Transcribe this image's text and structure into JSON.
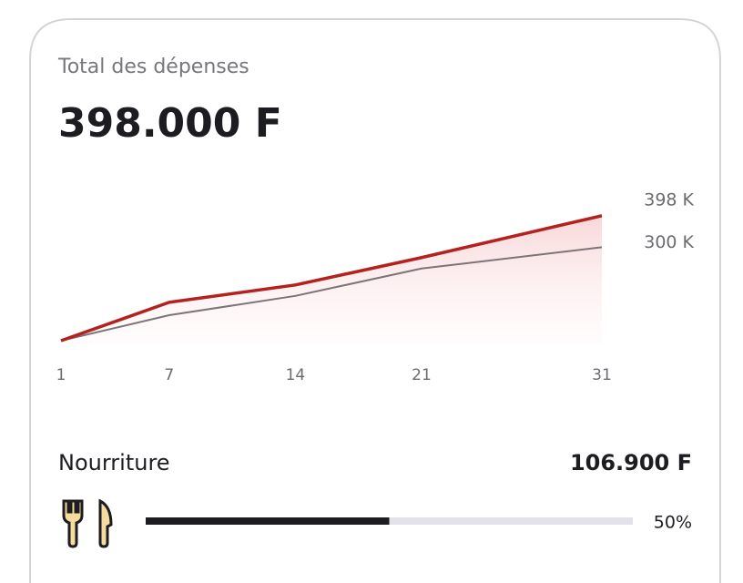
{
  "header": {
    "title": "Total des dépenses",
    "amount": "398.000 F"
  },
  "chart_data": {
    "type": "line",
    "x": [
      1,
      7,
      14,
      21,
      31
    ],
    "xlim": [
      1,
      31
    ],
    "xticks": [
      1,
      7,
      14,
      21,
      31
    ],
    "ylim": [
      0,
      420
    ],
    "series": [
      {
        "name": null,
        "color": "#b3221e",
        "values": [
          10,
          129,
          183,
          268,
          398
        ],
        "value_labels": [
          null,
          null,
          null,
          null,
          "398 K"
        ],
        "area": true
      },
      {
        "name": null,
        "color": "#7d7478",
        "values": [
          10,
          89,
          149,
          234,
          300
        ],
        "value_labels": [
          null,
          null,
          null,
          null,
          "300 K"
        ]
      }
    ]
  },
  "category": {
    "name": "Nourriture",
    "amount": "106.900 F",
    "progress": 50,
    "progress_label": "50%",
    "progress_lim": [
      0,
      100
    ]
  }
}
